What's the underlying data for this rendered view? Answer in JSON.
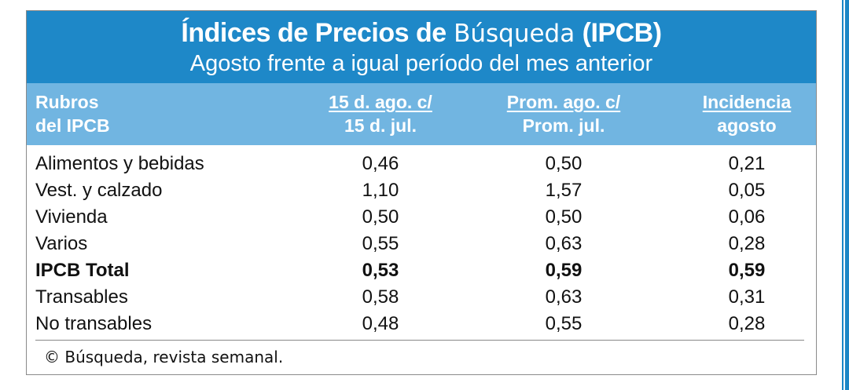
{
  "title": {
    "prefix": "Índices de Precios de",
    "brand": "Búsqueda",
    "suffix": "(IPCB)",
    "subtitle": "Agosto frente a igual período del mes anterior"
  },
  "headers": {
    "col0": {
      "line1": "Rubros",
      "line2": "del IPCB"
    },
    "col1": {
      "line1": "15 d. ago. c/",
      "line2": "15 d. jul."
    },
    "col2": {
      "line1": "Prom. ago. c/",
      "line2": "Prom. jul."
    },
    "col3": {
      "line1": "Incidencia",
      "line2": "agosto"
    }
  },
  "rows": [
    {
      "label": "Alimentos y bebidas",
      "v1": "0,46",
      "v2": "0,50",
      "v3": "0,21",
      "bold": false
    },
    {
      "label": "Vest. y calzado",
      "v1": "1,10",
      "v2": "1,57",
      "v3": "0,05",
      "bold": false
    },
    {
      "label": "Vivienda",
      "v1": "0,50",
      "v2": "0,50",
      "v3": "0,06",
      "bold": false
    },
    {
      "label": "Varios",
      "v1": "0,55",
      "v2": "0,63",
      "v3": "0,28",
      "bold": false
    },
    {
      "label": "IPCB Total",
      "v1": "0,53",
      "v2": "0,59",
      "v3": "0,59",
      "bold": true
    },
    {
      "label": "Transables",
      "v1": "0,58",
      "v2": "0,63",
      "v3": "0,31",
      "bold": false
    },
    {
      "label": "No transables",
      "v1": "0,48",
      "v2": "0,55",
      "v3": "0,28",
      "bold": false
    }
  ],
  "footer": "© Búsqueda, revista semanal.",
  "colors": {
    "title_band": "#1e88c8",
    "header_band": "#71b5e1"
  }
}
